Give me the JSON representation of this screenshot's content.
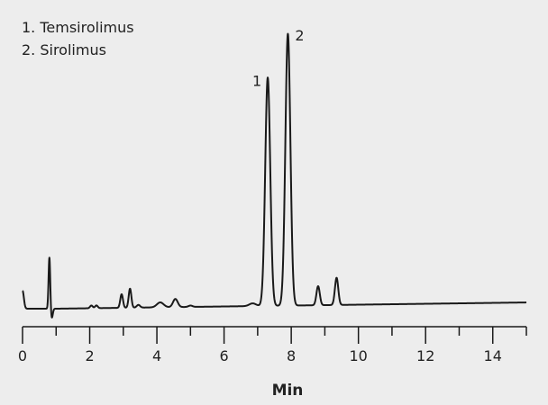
{
  "chart_data": {
    "type": "line",
    "title": "",
    "xlabel": "Min",
    "ylabel": "",
    "xlim": [
      0,
      15
    ],
    "x_ticks": [
      "0",
      "2",
      "4",
      "6",
      "8",
      "10",
      "12",
      "14"
    ],
    "x_minor_step": 1,
    "y_axis_shown": false,
    "grid": false,
    "legend_position": "top-left",
    "legend": [
      "1.  Temsirolimus",
      "2.  Sirolimus"
    ],
    "series": [
      {
        "color": "#1a1a1a",
        "relative_intensity_peaks": [
          {
            "rt": 0.0,
            "height": 6.6,
            "width": 0.04
          },
          {
            "rt": 0.8,
            "height": 19,
            "width": 0.025
          },
          {
            "rt": 0.87,
            "height": -3.5,
            "width": 0.03
          },
          {
            "rt": 2.05,
            "height": 1,
            "width": 0.04
          },
          {
            "rt": 2.2,
            "height": 1,
            "width": 0.04
          },
          {
            "rt": 2.95,
            "height": 5,
            "width": 0.04
          },
          {
            "rt": 3.2,
            "height": 7,
            "width": 0.04
          },
          {
            "rt": 3.45,
            "height": 1,
            "width": 0.05
          },
          {
            "rt": 4.1,
            "height": 1.8,
            "width": 0.1
          },
          {
            "rt": 4.55,
            "height": 3,
            "width": 0.07
          },
          {
            "rt": 5.0,
            "height": 0.5,
            "width": 0.06
          },
          {
            "rt": 6.85,
            "height": 1,
            "width": 0.1
          },
          {
            "rt": 7.3,
            "height": 84,
            "width": 0.075
          },
          {
            "rt": 7.9,
            "height": 100,
            "width": 0.075
          },
          {
            "rt": 8.8,
            "height": 7,
            "width": 0.05
          },
          {
            "rt": 9.35,
            "height": 10,
            "width": 0.05
          }
        ],
        "baseline_drift": {
          "start": 0,
          "end": 2.3
        }
      }
    ],
    "peak_annotations": [
      {
        "label": "1",
        "rt": 7.3,
        "height": 84
      },
      {
        "label": "2",
        "rt": 7.9,
        "height": 100
      }
    ]
  }
}
